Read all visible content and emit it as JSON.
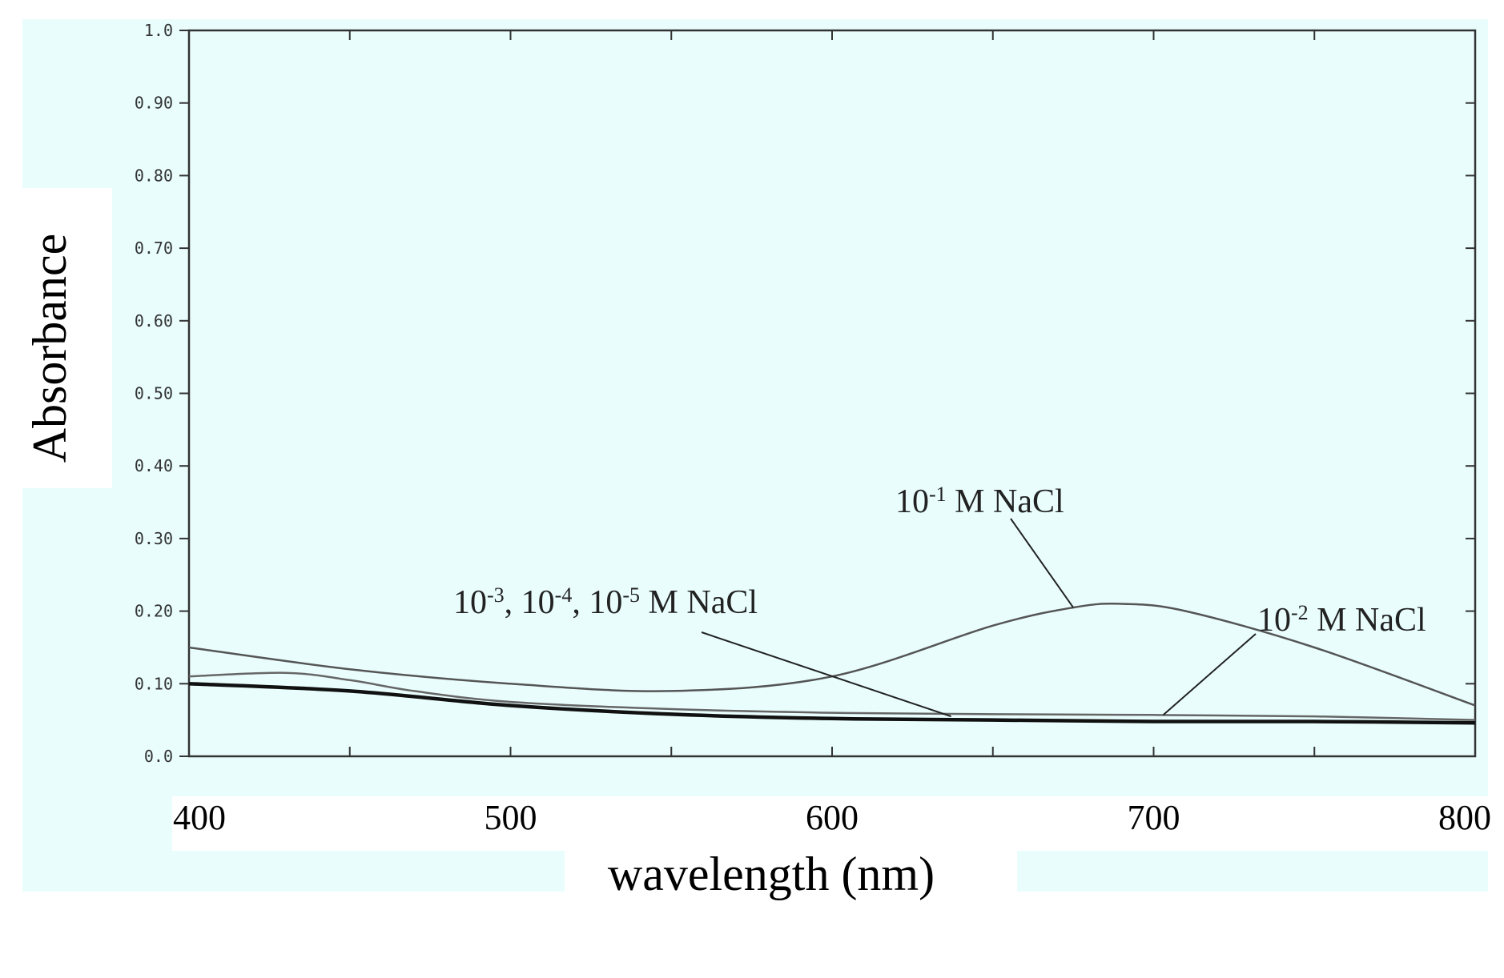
{
  "chart_data": {
    "type": "line",
    "title": "",
    "xlabel": "wavelength (nm)",
    "ylabel": "Absorbance",
    "xlim": [
      400,
      800
    ],
    "ylim": [
      0.0,
      1.0
    ],
    "x_ticks": [
      400,
      500,
      600,
      700,
      800
    ],
    "x_tick_labels": [
      "400",
      "500",
      "600",
      "700",
      "800"
    ],
    "y_ticks": [
      0.0,
      0.1,
      0.2,
      0.3,
      0.4,
      0.5,
      0.6,
      0.7,
      0.8,
      0.9,
      1.0
    ],
    "y_tick_labels": [
      "0.0",
      "0.10",
      "0.20",
      "0.30",
      "0.40",
      "0.50",
      "0.60",
      "0.70",
      "0.80",
      "0.90",
      "1.0"
    ],
    "grid": false,
    "series": [
      {
        "name": "10-1 M NaCl",
        "color": "#555555",
        "x": [
          400,
          450,
          500,
          550,
          600,
          650,
          675,
          690,
          710,
          750,
          800
        ],
        "y": [
          0.15,
          0.12,
          0.1,
          0.09,
          0.11,
          0.18,
          0.205,
          0.21,
          0.2,
          0.15,
          0.07
        ]
      },
      {
        "name": "10-2 M NaCl",
        "color": "#666666",
        "x": [
          400,
          430,
          450,
          470,
          500,
          550,
          600,
          650,
          700,
          750,
          800
        ],
        "y": [
          0.11,
          0.115,
          0.105,
          0.09,
          0.075,
          0.065,
          0.06,
          0.058,
          0.057,
          0.055,
          0.05
        ]
      },
      {
        "name": "10-3, 10-4, 10-5 M NaCl",
        "color": "#111111",
        "x": [
          400,
          450,
          500,
          550,
          600,
          650,
          700,
          750,
          800
        ],
        "y": [
          0.1,
          0.09,
          0.07,
          0.058,
          0.052,
          0.05,
          0.048,
          0.048,
          0.046
        ]
      }
    ],
    "annotations": [
      {
        "series": "10-1 M NaCl",
        "parts": [
          {
            "text": "10"
          },
          {
            "text": "-1",
            "sup": true
          },
          {
            "text": " M NaCl"
          }
        ],
        "point": [
          675,
          0.205
        ]
      },
      {
        "series": "10-3, 10-4, 10-5 M NaCl",
        "parts": [
          {
            "text": "10"
          },
          {
            "text": "-3",
            "sup": true
          },
          {
            "text": ", 10"
          },
          {
            "text": "-4",
            "sup": true
          },
          {
            "text": ", 10"
          },
          {
            "text": "-5",
            "sup": true
          },
          {
            "text": " M NaCl"
          }
        ],
        "point": [
          637,
          0.055
        ]
      },
      {
        "series": "10-2 M NaCl",
        "parts": [
          {
            "text": "10"
          },
          {
            "text": "-2",
            "sup": true
          },
          {
            "text": " M NaCl"
          }
        ],
        "point": [
          703,
          0.057
        ]
      }
    ],
    "colors": {
      "plot_background": "#e9fdfd",
      "axis": "#333333"
    }
  }
}
